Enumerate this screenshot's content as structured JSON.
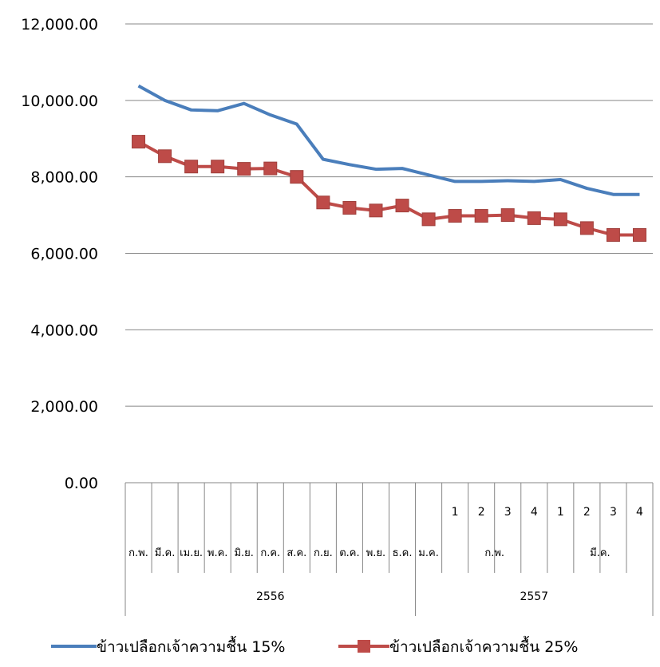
{
  "chart_data": {
    "type": "line",
    "y_ticks": [
      "0.00",
      "2,000.00",
      "4,000.00",
      "6,000.00",
      "8,000.00",
      "10,000.00",
      "12,000.00"
    ],
    "ylim": [
      0,
      12000
    ],
    "grid": true,
    "legend_position": "bottom",
    "categories": [
      {
        "month": "ก.พ.",
        "week": "",
        "year": "2556"
      },
      {
        "month": "มี.ค.",
        "week": "",
        "year": "2556"
      },
      {
        "month": "เม.ย.",
        "week": "",
        "year": "2556"
      },
      {
        "month": "พ.ค.",
        "week": "",
        "year": "2556"
      },
      {
        "month": "มิ.ย.",
        "week": "",
        "year": "2556"
      },
      {
        "month": "ก.ค.",
        "week": "",
        "year": "2556"
      },
      {
        "month": "ส.ค.",
        "week": "",
        "year": "2556"
      },
      {
        "month": "ก.ย.",
        "week": "",
        "year": "2556"
      },
      {
        "month": "ต.ค.",
        "week": "",
        "year": "2556"
      },
      {
        "month": "พ.ย.",
        "week": "",
        "year": "2556"
      },
      {
        "month": "ธ.ค.",
        "week": "",
        "year": "2556"
      },
      {
        "month": "ม.ค.",
        "week": "",
        "year": "2557"
      },
      {
        "month": "ก.พ.",
        "week": "1",
        "year": "2557"
      },
      {
        "month": "ก.พ.",
        "week": "2",
        "year": "2557"
      },
      {
        "month": "ก.พ.",
        "week": "3",
        "year": "2557"
      },
      {
        "month": "ก.พ.",
        "week": "4",
        "year": "2557"
      },
      {
        "month": "มี.ค.",
        "week": "1",
        "year": "2557"
      },
      {
        "month": "มี.ค.",
        "week": "2",
        "year": "2557"
      },
      {
        "month": "มี.ค.",
        "week": "3",
        "year": "2557"
      },
      {
        "month": "มี.ค.",
        "week": "4",
        "year": "2557"
      }
    ],
    "month_groups": [
      {
        "label": "ก.พ.",
        "count": 1
      },
      {
        "label": "มี.ค.",
        "count": 1
      },
      {
        "label": "เม.ย.",
        "count": 1
      },
      {
        "label": "พ.ค.",
        "count": 1
      },
      {
        "label": "มิ.ย.",
        "count": 1
      },
      {
        "label": "ก.ค.",
        "count": 1
      },
      {
        "label": "ส.ค.",
        "count": 1
      },
      {
        "label": "ก.ย.",
        "count": 1
      },
      {
        "label": "ต.ค.",
        "count": 1
      },
      {
        "label": "พ.ย.",
        "count": 1
      },
      {
        "label": "ธ.ค.",
        "count": 1
      },
      {
        "label": "ม.ค.",
        "count": 1
      },
      {
        "label": "ก.พ.",
        "count": 4
      },
      {
        "label": "มี.ค.",
        "count": 4
      }
    ],
    "year_groups": [
      {
        "label": "2556",
        "count": 11
      },
      {
        "label": "2557",
        "count": 9
      }
    ],
    "series": [
      {
        "name": "ข้าวเปลือกเจ้าความชื้น 15%",
        "color": "#4a7ebb",
        "marker": "none",
        "values": [
          10380,
          10000,
          9750,
          9730,
          9920,
          9620,
          9380,
          8460,
          8320,
          8200,
          8220,
          8050,
          7880,
          7880,
          7900,
          7880,
          7930,
          7700,
          7540,
          7540
        ]
      },
      {
        "name": "ข้าวเปลือกเจ้าความชื้น 25%",
        "color": "#be4b48",
        "marker": "square",
        "values": [
          8920,
          8540,
          8270,
          8270,
          8210,
          8220,
          8000,
          7330,
          7190,
          7120,
          7250,
          6890,
          6980,
          6980,
          7000,
          6920,
          6890,
          6660,
          6480,
          6480
        ]
      }
    ]
  }
}
